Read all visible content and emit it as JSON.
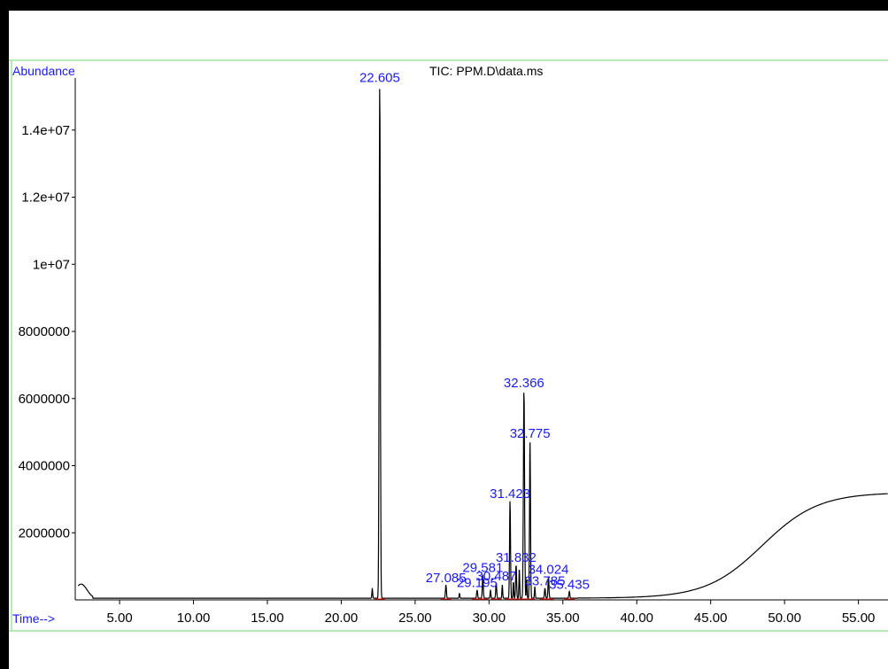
{
  "chart_data": {
    "type": "line",
    "title": "TIC: PPM.D\\data.ms",
    "ylabel": "Abundance",
    "xlabel": "Time-->",
    "xlim": [
      2.0,
      57.0
    ],
    "ylim": [
      0,
      15500000
    ],
    "x_ticks": [
      {
        "v": 5,
        "label": "5.00"
      },
      {
        "v": 10,
        "label": "10.00"
      },
      {
        "v": 15,
        "label": "15.00"
      },
      {
        "v": 20,
        "label": "20.00"
      },
      {
        "v": 25,
        "label": "25.00"
      },
      {
        "v": 30,
        "label": "30.00"
      },
      {
        "v": 35,
        "label": "35.00"
      },
      {
        "v": 40,
        "label": "40.00"
      },
      {
        "v": 45,
        "label": "45.00"
      },
      {
        "v": 50,
        "label": "50.00"
      },
      {
        "v": 55,
        "label": "55.00"
      }
    ],
    "y_ticks": [
      {
        "v": 2000000,
        "label": "2000000"
      },
      {
        "v": 4000000,
        "label": "4000000"
      },
      {
        "v": 6000000,
        "label": "6000000"
      },
      {
        "v": 8000000,
        "label": "8000000"
      },
      {
        "v": 10000000,
        "label": "1e+07"
      },
      {
        "v": 12000000,
        "label": "1.2e+07"
      },
      {
        "v": 14000000,
        "label": "1.4e+07"
      }
    ],
    "peaks": [
      {
        "x": 22.605,
        "y": 15300000,
        "label": "22.605"
      },
      {
        "x": 27.085,
        "y": 400000,
        "label": "27.085"
      },
      {
        "x": 29.195,
        "y": 250000,
        "label": "29.195"
      },
      {
        "x": 29.581,
        "y": 700000,
        "label": "29.581"
      },
      {
        "x": 30.487,
        "y": 450000,
        "label": "30.487"
      },
      {
        "x": 31.423,
        "y": 2900000,
        "label": "31.423"
      },
      {
        "x": 31.832,
        "y": 1000000,
        "label": "31.832"
      },
      {
        "x": 32.366,
        "y": 6200000,
        "label": "32.366"
      },
      {
        "x": 32.775,
        "y": 4700000,
        "label": "32.775"
      },
      {
        "x": 33.785,
        "y": 300000,
        "label": "33.785"
      },
      {
        "x": 34.024,
        "y": 650000,
        "label": "34.024"
      },
      {
        "x": 35.435,
        "y": 200000,
        "label": "35.435"
      }
    ],
    "grid": false,
    "legend": "none"
  }
}
